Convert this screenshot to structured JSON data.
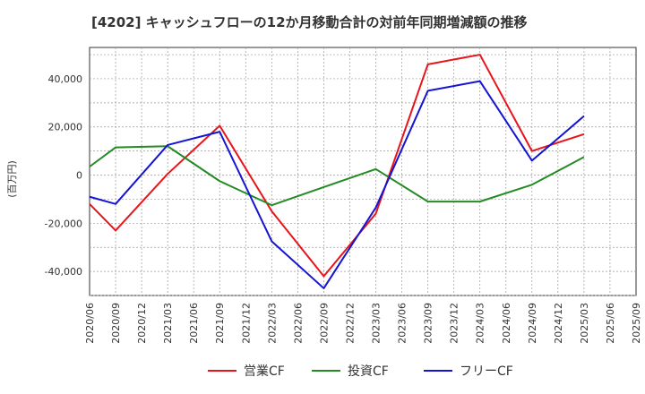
{
  "chart_data": {
    "type": "line",
    "title": "[4202]  キャッシュフローの12か月移動合計の対前年同期増減額の推移",
    "ylabel": "(百万円)",
    "xlabel": "",
    "ylim": [
      -50000,
      53000
    ],
    "yticks": [
      -40000,
      -20000,
      0,
      20000,
      40000
    ],
    "ytick_labels": [
      "-40,000",
      "-20,000",
      "0",
      "20,000",
      "40,000"
    ],
    "xticks": [
      "2020/06",
      "2020/09",
      "2020/12",
      "2021/03",
      "2021/06",
      "2021/09",
      "2021/12",
      "2022/03",
      "2022/06",
      "2022/09",
      "2022/12",
      "2023/03",
      "2023/06",
      "2023/09",
      "2023/12",
      "2024/03",
      "2024/06",
      "2024/09",
      "2024/12",
      "2025/03",
      "2025/06",
      "2025/09"
    ],
    "grid": true,
    "legend_position": "bottom",
    "series": [
      {
        "name": "営業CF",
        "color": "#e8141c",
        "x": [
          "2020/06",
          "2020/09",
          "2021/03",
          "2021/09",
          "2022/03",
          "2022/09",
          "2023/03",
          "2023/09",
          "2024/03",
          "2024/09",
          "2025/03"
        ],
        "y": [
          -12000,
          -23000,
          500,
          20500,
          -15000,
          -42000,
          -16000,
          46000,
          50000,
          10000,
          17000
        ]
      },
      {
        "name": "投資CF",
        "color": "#248b24",
        "x": [
          "2020/06",
          "2020/09",
          "2021/03",
          "2021/09",
          "2022/03",
          "2022/09",
          "2023/03",
          "2023/09",
          "2024/03",
          "2024/09",
          "2025/03"
        ],
        "y": [
          3500,
          11500,
          12000,
          -2500,
          -12500,
          -5000,
          2500,
          -11000,
          -11000,
          -4000,
          7500
        ]
      },
      {
        "name": "フリーCF",
        "color": "#1414d2",
        "x": [
          "2020/06",
          "2020/09",
          "2021/03",
          "2021/09",
          "2022/03",
          "2022/09",
          "2023/03",
          "2023/09",
          "2024/03",
          "2024/09",
          "2025/03"
        ],
        "y": [
          -9000,
          -12000,
          12500,
          18000,
          -27500,
          -47000,
          -13500,
          35000,
          39000,
          6000,
          24500
        ]
      }
    ]
  }
}
